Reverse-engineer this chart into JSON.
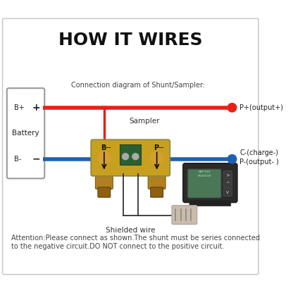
{
  "title": "HOW IT WIRES",
  "title_fontsize": 18,
  "title_fontweight": "bold",
  "bg_color": "#ffffff",
  "red_wire_color": "#e8201a",
  "blue_wire_color": "#2060b0",
  "battery_label": "Battery",
  "bplus_label": "B+",
  "bminus_label": "B-",
  "connection_label": "Connection diagram of Shunt/Sampler:",
  "sampler_label": "Sampler",
  "shielded_label": "Shielded wire",
  "pplus_label": "P+(output+)",
  "cminus_label": "C-(charge-)",
  "pminus_label": "P-(output- )",
  "attention_line1": "Attention:Please connect as shown.The shunt must be series connected",
  "attention_line2": "to the negative circuit.DO NOT connect to the positive circuit.",
  "shunt_color": "#c8a020",
  "monitor_color": "#2a2a2a"
}
